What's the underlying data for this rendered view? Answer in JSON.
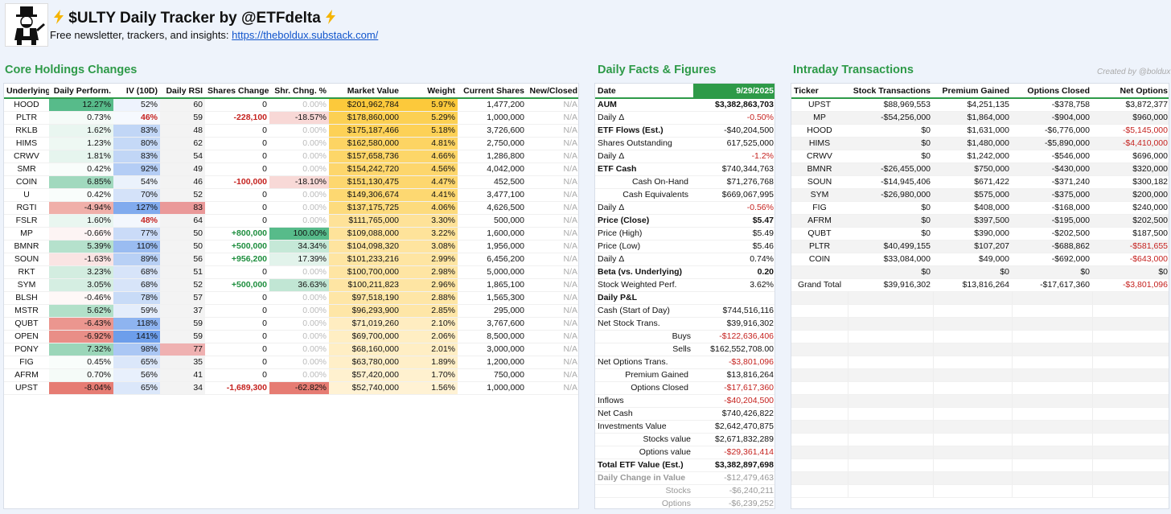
{
  "header": {
    "title": "$ULTY Daily Tracker by @ETFdelta",
    "subtitle": "Free newsletter, trackers, and insights:",
    "link": "https://theboldux.substack.com/",
    "credit": "Created by @boldux",
    "logo_icon": "monopoly-man-icon",
    "bolt_icon": "lightning-bolt-icon"
  },
  "core": {
    "title": "Core Holdings Changes",
    "columns": [
      "Underlying",
      "Daily Perform.",
      "IV (10D)",
      "Daily RSI",
      "Shares Change",
      "Shr. Chng. %",
      "Market Value",
      "Weight",
      "Current Shares",
      "New/Closed"
    ],
    "rows": [
      {
        "ticker": "HOOD",
        "perf": "12.27%",
        "perf_v": 12.27,
        "iv": "52%",
        "iv_v": 52,
        "rsi": "60",
        "rsi_v": 60,
        "chg": "0",
        "chgp": "0.00%",
        "chgp_v": 0,
        "mv": "$201,962,784",
        "wt": "5.97%",
        "wt_v": 5.97,
        "shares": "1,477,200",
        "nc": "N/A"
      },
      {
        "ticker": "PLTR",
        "perf": "0.73%",
        "perf_v": 0.73,
        "iv": "46%",
        "iv_v": 46,
        "rsi": "59",
        "rsi_v": 59,
        "chg": "-228,100",
        "chgp": "-18.57%",
        "chgp_v": -18.57,
        "mv": "$178,860,000",
        "wt": "5.29%",
        "wt_v": 5.29,
        "shares": "1,000,000",
        "nc": "N/A"
      },
      {
        "ticker": "RKLB",
        "perf": "1.62%",
        "perf_v": 1.62,
        "iv": "83%",
        "iv_v": 83,
        "rsi": "48",
        "rsi_v": 48,
        "chg": "0",
        "chgp": "0.00%",
        "chgp_v": 0,
        "mv": "$175,187,466",
        "wt": "5.18%",
        "wt_v": 5.18,
        "shares": "3,726,600",
        "nc": "N/A"
      },
      {
        "ticker": "HIMS",
        "perf": "1.23%",
        "perf_v": 1.23,
        "iv": "80%",
        "iv_v": 80,
        "rsi": "62",
        "rsi_v": 62,
        "chg": "0",
        "chgp": "0.00%",
        "chgp_v": 0,
        "mv": "$162,580,000",
        "wt": "4.81%",
        "wt_v": 4.81,
        "shares": "2,750,000",
        "nc": "N/A"
      },
      {
        "ticker": "CRWV",
        "perf": "1.81%",
        "perf_v": 1.81,
        "iv": "83%",
        "iv_v": 83,
        "rsi": "54",
        "rsi_v": 54,
        "chg": "0",
        "chgp": "0.00%",
        "chgp_v": 0,
        "mv": "$157,658,736",
        "wt": "4.66%",
        "wt_v": 4.66,
        "shares": "1,286,800",
        "nc": "N/A"
      },
      {
        "ticker": "SMR",
        "perf": "0.42%",
        "perf_v": 0.42,
        "iv": "92%",
        "iv_v": 92,
        "rsi": "49",
        "rsi_v": 49,
        "chg": "0",
        "chgp": "0.00%",
        "chgp_v": 0,
        "mv": "$154,242,720",
        "wt": "4.56%",
        "wt_v": 4.56,
        "shares": "4,042,000",
        "nc": "N/A"
      },
      {
        "ticker": "COIN",
        "perf": "6.85%",
        "perf_v": 6.85,
        "iv": "54%",
        "iv_v": 54,
        "rsi": "46",
        "rsi_v": 46,
        "chg": "-100,000",
        "chgp": "-18.10%",
        "chgp_v": -18.1,
        "mv": "$151,130,475",
        "wt": "4.47%",
        "wt_v": 4.47,
        "shares": "452,500",
        "nc": "N/A"
      },
      {
        "ticker": "U",
        "perf": "0.42%",
        "perf_v": 0.42,
        "iv": "70%",
        "iv_v": 70,
        "rsi": "52",
        "rsi_v": 52,
        "chg": "0",
        "chgp": "0.00%",
        "chgp_v": 0,
        "mv": "$149,306,674",
        "wt": "4.41%",
        "wt_v": 4.41,
        "shares": "3,477,100",
        "nc": "N/A"
      },
      {
        "ticker": "RGTI",
        "perf": "-4.94%",
        "perf_v": -4.94,
        "iv": "127%",
        "iv_v": 127,
        "rsi": "83",
        "rsi_v": 83,
        "chg": "0",
        "chgp": "0.00%",
        "chgp_v": 0,
        "mv": "$137,175,725",
        "wt": "4.06%",
        "wt_v": 4.06,
        "shares": "4,626,500",
        "nc": "N/A"
      },
      {
        "ticker": "FSLR",
        "perf": "1.60%",
        "perf_v": 1.6,
        "iv": "48%",
        "iv_v": 48,
        "rsi": "64",
        "rsi_v": 64,
        "chg": "0",
        "chgp": "0.00%",
        "chgp_v": 0,
        "mv": "$111,765,000",
        "wt": "3.30%",
        "wt_v": 3.3,
        "shares": "500,000",
        "nc": "N/A"
      },
      {
        "ticker": "MP",
        "perf": "-0.66%",
        "perf_v": -0.66,
        "iv": "77%",
        "iv_v": 77,
        "rsi": "50",
        "rsi_v": 50,
        "chg": "+800,000",
        "chgp": "100.00%",
        "chgp_v": 100,
        "mv": "$109,088,000",
        "wt": "3.22%",
        "wt_v": 3.22,
        "shares": "1,600,000",
        "nc": "N/A"
      },
      {
        "ticker": "BMNR",
        "perf": "5.39%",
        "perf_v": 5.39,
        "iv": "110%",
        "iv_v": 110,
        "rsi": "50",
        "rsi_v": 50,
        "chg": "+500,000",
        "chgp": "34.34%",
        "chgp_v": 34.34,
        "mv": "$104,098,320",
        "wt": "3.08%",
        "wt_v": 3.08,
        "shares": "1,956,000",
        "nc": "N/A"
      },
      {
        "ticker": "SOUN",
        "perf": "-1.63%",
        "perf_v": -1.63,
        "iv": "89%",
        "iv_v": 89,
        "rsi": "56",
        "rsi_v": 56,
        "chg": "+956,200",
        "chgp": "17.39%",
        "chgp_v": 17.39,
        "mv": "$101,233,216",
        "wt": "2.99%",
        "wt_v": 2.99,
        "shares": "6,456,200",
        "nc": "N/A"
      },
      {
        "ticker": "RKT",
        "perf": "3.23%",
        "perf_v": 3.23,
        "iv": "68%",
        "iv_v": 68,
        "rsi": "51",
        "rsi_v": 51,
        "chg": "0",
        "chgp": "0.00%",
        "chgp_v": 0,
        "mv": "$100,700,000",
        "wt": "2.98%",
        "wt_v": 2.98,
        "shares": "5,000,000",
        "nc": "N/A"
      },
      {
        "ticker": "SYM",
        "perf": "3.05%",
        "perf_v": 3.05,
        "iv": "68%",
        "iv_v": 68,
        "rsi": "52",
        "rsi_v": 52,
        "chg": "+500,000",
        "chgp": "36.63%",
        "chgp_v": 36.63,
        "mv": "$100,211,823",
        "wt": "2.96%",
        "wt_v": 2.96,
        "shares": "1,865,100",
        "nc": "N/A"
      },
      {
        "ticker": "BLSH",
        "perf": "-0.46%",
        "perf_v": -0.46,
        "iv": "78%",
        "iv_v": 78,
        "rsi": "57",
        "rsi_v": 57,
        "chg": "0",
        "chgp": "0.00%",
        "chgp_v": 0,
        "mv": "$97,518,190",
        "wt": "2.88%",
        "wt_v": 2.88,
        "shares": "1,565,300",
        "nc": "N/A"
      },
      {
        "ticker": "MSTR",
        "perf": "5.62%",
        "perf_v": 5.62,
        "iv": "59%",
        "iv_v": 59,
        "rsi": "37",
        "rsi_v": 37,
        "chg": "0",
        "chgp": "0.00%",
        "chgp_v": 0,
        "mv": "$96,293,900",
        "wt": "2.85%",
        "wt_v": 2.85,
        "shares": "295,000",
        "nc": "N/A"
      },
      {
        "ticker": "QUBT",
        "perf": "-6.43%",
        "perf_v": -6.43,
        "iv": "118%",
        "iv_v": 118,
        "rsi": "59",
        "rsi_v": 59,
        "chg": "0",
        "chgp": "0.00%",
        "chgp_v": 0,
        "mv": "$71,019,260",
        "wt": "2.10%",
        "wt_v": 2.1,
        "shares": "3,767,600",
        "nc": "N/A"
      },
      {
        "ticker": "OPEN",
        "perf": "-6.92%",
        "perf_v": -6.92,
        "iv": "141%",
        "iv_v": 141,
        "rsi": "59",
        "rsi_v": 59,
        "chg": "0",
        "chgp": "0.00%",
        "chgp_v": 0,
        "mv": "$69,700,000",
        "wt": "2.06%",
        "wt_v": 2.06,
        "shares": "8,500,000",
        "nc": "N/A"
      },
      {
        "ticker": "PONY",
        "perf": "7.32%",
        "perf_v": 7.32,
        "iv": "98%",
        "iv_v": 98,
        "rsi": "77",
        "rsi_v": 77,
        "chg": "0",
        "chgp": "0.00%",
        "chgp_v": 0,
        "mv": "$68,160,000",
        "wt": "2.01%",
        "wt_v": 2.01,
        "shares": "3,000,000",
        "nc": "N/A"
      },
      {
        "ticker": "FIG",
        "perf": "0.45%",
        "perf_v": 0.45,
        "iv": "65%",
        "iv_v": 65,
        "rsi": "35",
        "rsi_v": 35,
        "chg": "0",
        "chgp": "0.00%",
        "chgp_v": 0,
        "mv": "$63,780,000",
        "wt": "1.89%",
        "wt_v": 1.89,
        "shares": "1,200,000",
        "nc": "N/A"
      },
      {
        "ticker": "AFRM",
        "perf": "0.70%",
        "perf_v": 0.7,
        "iv": "56%",
        "iv_v": 56,
        "rsi": "41",
        "rsi_v": 41,
        "chg": "0",
        "chgp": "0.00%",
        "chgp_v": 0,
        "mv": "$57,420,000",
        "wt": "1.70%",
        "wt_v": 1.7,
        "shares": "750,000",
        "nc": "N/A"
      },
      {
        "ticker": "UPST",
        "perf": "-8.04%",
        "perf_v": -8.04,
        "iv": "65%",
        "iv_v": 65,
        "rsi": "34",
        "rsi_v": 34,
        "chg": "-1,689,300",
        "chgp": "-62.82%",
        "chgp_v": -62.82,
        "mv": "$52,740,000",
        "wt": "1.56%",
        "wt_v": 1.56,
        "shares": "1,000,000",
        "nc": "N/A"
      }
    ]
  },
  "facts": {
    "title": "Daily Facts & Figures",
    "date_label": "Date",
    "date": "9/29/2025",
    "rows": [
      {
        "label": "AUM",
        "value": "$3,382,863,703",
        "style": "bold sec"
      },
      {
        "label": "Daily Δ",
        "value": "-0.50%",
        "vstyle": "neg"
      },
      {
        "label": "ETF Flows (Est.)",
        "value": "-$40,204,500",
        "style": "labelbold sec"
      },
      {
        "label": "Shares Outstanding",
        "value": "617,525,000"
      },
      {
        "label": "Daily Δ",
        "value": "-1.2%",
        "vstyle": "neg"
      },
      {
        "label": "ETF Cash",
        "value": "$740,344,763",
        "style": "labelbold sec"
      },
      {
        "label": "Cash On-Hand",
        "value": "$71,276,768",
        "indent": "mid"
      },
      {
        "label": "Cash Equivalents",
        "value": "$669,067,995",
        "indent": "mid"
      },
      {
        "label": "Daily Δ",
        "value": "-0.56%",
        "vstyle": "neg",
        "style": "sec"
      },
      {
        "label": "Price (Close)",
        "value": "$5.47",
        "style": "bold sec"
      },
      {
        "label": "Price (High)",
        "value": "$5.49"
      },
      {
        "label": "Price (Low)",
        "value": "$5.46"
      },
      {
        "label": "Daily Δ",
        "value": "0.74%"
      },
      {
        "label": "Beta (vs. Underlying)",
        "value": "0.20",
        "style": "bold sec"
      },
      {
        "label": "Stock Weighted Perf.",
        "value": "3.62%"
      },
      {
        "label": "Daily P&L",
        "value": "",
        "style": "labelbold sec"
      },
      {
        "label": "Cash (Start of Day)",
        "value": "$744,516,116",
        "style": "sec"
      },
      {
        "label": "Net Stock Trans.",
        "value": "$39,916,302"
      },
      {
        "label": "Buys",
        "value": "-$122,636,406",
        "vstyle": "neg",
        "indent": "right",
        "style": "sec"
      },
      {
        "label": "Sells",
        "value": "$162,552,708.00",
        "indent": "right"
      },
      {
        "label": "Net Options Trans.",
        "value": "-$3,801,096",
        "vstyle": "neg",
        "style": "sec"
      },
      {
        "label": "Premium Gained",
        "value": "$13,816,264",
        "indent": "mid"
      },
      {
        "label": "Options Closed",
        "value": "-$17,617,360",
        "vstyle": "neg",
        "indent": "mid"
      },
      {
        "label": "Inflows",
        "value": "-$40,204,500",
        "vstyle": "neg",
        "style": "sec"
      },
      {
        "label": "Net Cash",
        "value": "$740,426,822",
        "style": "sec"
      },
      {
        "label": "Investments Value",
        "value": "$2,642,470,875"
      },
      {
        "label": "Stocks value",
        "value": "$2,671,832,289",
        "indent": "right"
      },
      {
        "label": "Options value",
        "value": "-$29,361,414",
        "vstyle": "neg",
        "indent": "right"
      },
      {
        "label": "Total ETF Value (Est.)",
        "value": "$3,382,897,698",
        "style": "bold sec"
      },
      {
        "label": "Daily Change in Value",
        "value": "-$12,479,463",
        "vstyle": "neg",
        "style": "grey greybold sec"
      },
      {
        "label": "Stocks",
        "value": "-$6,240,211",
        "indent": "right",
        "style": "grey"
      },
      {
        "label": "Options",
        "value": "-$6,239,252",
        "indent": "right",
        "style": "grey"
      }
    ]
  },
  "intraday": {
    "title": "Intraday Transactions",
    "columns": [
      "Ticker",
      "Stock Transactions",
      "Premium Gained",
      "Options Closed",
      "Net Options"
    ],
    "rows": [
      {
        "ticker": "UPST",
        "stock": "$88,969,553",
        "prem": "$4,251,135",
        "closed": "-$378,758",
        "net": "$3,872,377"
      },
      {
        "ticker": "MP",
        "stock": "-$54,256,000",
        "prem": "$1,864,000",
        "closed": "-$904,000",
        "net": "$960,000"
      },
      {
        "ticker": "HOOD",
        "stock": "$0",
        "prem": "$1,631,000",
        "closed": "-$6,776,000",
        "net": "-$5,145,000"
      },
      {
        "ticker": "HIMS",
        "stock": "$0",
        "prem": "$1,480,000",
        "closed": "-$5,890,000",
        "net": "-$4,410,000"
      },
      {
        "ticker": "CRWV",
        "stock": "$0",
        "prem": "$1,242,000",
        "closed": "-$546,000",
        "net": "$696,000"
      },
      {
        "ticker": "BMNR",
        "stock": "-$26,455,000",
        "prem": "$750,000",
        "closed": "-$430,000",
        "net": "$320,000"
      },
      {
        "ticker": "SOUN",
        "stock": "-$14,945,406",
        "prem": "$671,422",
        "closed": "-$371,240",
        "net": "$300,182"
      },
      {
        "ticker": "SYM",
        "stock": "-$26,980,000",
        "prem": "$575,000",
        "closed": "-$375,000",
        "net": "$200,000"
      },
      {
        "ticker": "FIG",
        "stock": "$0",
        "prem": "$408,000",
        "closed": "-$168,000",
        "net": "$240,000"
      },
      {
        "ticker": "AFRM",
        "stock": "$0",
        "prem": "$397,500",
        "closed": "-$195,000",
        "net": "$202,500"
      },
      {
        "ticker": "QUBT",
        "stock": "$0",
        "prem": "$390,000",
        "closed": "-$202,500",
        "net": "$187,500"
      },
      {
        "ticker": "PLTR",
        "stock": "$40,499,155",
        "prem": "$107,207",
        "closed": "-$688,862",
        "net": "-$581,655"
      },
      {
        "ticker": "COIN",
        "stock": "$33,084,000",
        "prem": "$49,000",
        "closed": "-$692,000",
        "net": "-$643,000"
      },
      {
        "ticker": "",
        "stock": "$0",
        "prem": "$0",
        "closed": "$0",
        "net": "$0"
      },
      {
        "ticker": "Grand Total",
        "stock": "$39,916,302",
        "prem": "$13,816,264",
        "closed": "-$17,617,360",
        "net": "-$3,801,096"
      }
    ],
    "empty_rows": 16
  }
}
